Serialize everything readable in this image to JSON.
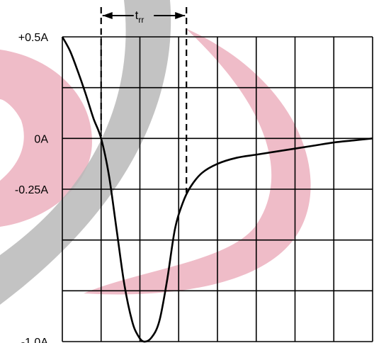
{
  "chart_data": {
    "type": "line",
    "title": "",
    "xlabel": "",
    "ylabel": "",
    "grid": true,
    "ylim": [
      -1.0,
      0.5
    ],
    "xlim": [
      0,
      8
    ],
    "y_tick_labels": [
      {
        "value": 0.5,
        "label": "+0.5A"
      },
      {
        "value": 0.0,
        "label": "0A"
      },
      {
        "value": -0.25,
        "label": "-0.25A"
      },
      {
        "value": -1.0,
        "label": "-1.0A"
      }
    ],
    "annotation": {
      "label": "t",
      "subscript": "rr",
      "x_start": 1.0,
      "x_end": 3.2
    },
    "series": [
      {
        "values_xy": [
          [
            0.0,
            0.5
          ],
          [
            0.2,
            0.43
          ],
          [
            0.4,
            0.33
          ],
          [
            0.6,
            0.22
          ],
          [
            0.8,
            0.1
          ],
          [
            1.0,
            0.0
          ],
          [
            1.2,
            -0.18
          ],
          [
            1.4,
            -0.45
          ],
          [
            1.6,
            -0.72
          ],
          [
            1.8,
            -0.9
          ],
          [
            1.95,
            -0.97
          ],
          [
            2.1,
            -1.0
          ],
          [
            2.3,
            -0.98
          ],
          [
            2.5,
            -0.9
          ],
          [
            2.7,
            -0.7
          ],
          [
            2.9,
            -0.45
          ],
          [
            3.1,
            -0.32
          ],
          [
            3.3,
            -0.24
          ],
          [
            3.6,
            -0.17
          ],
          [
            4.0,
            -0.125
          ],
          [
            4.5,
            -0.095
          ],
          [
            5.0,
            -0.08
          ],
          [
            5.5,
            -0.065
          ],
          [
            6.0,
            -0.05
          ],
          [
            6.5,
            -0.035
          ],
          [
            7.0,
            -0.02
          ],
          [
            7.5,
            -0.01
          ],
          [
            8.0,
            0.0
          ]
        ]
      }
    ],
    "colors": {
      "curve": "#000000",
      "grid": "#000000",
      "watermark_pink": "#e8a0b0",
      "watermark_gray": "#b8b8b8"
    }
  }
}
